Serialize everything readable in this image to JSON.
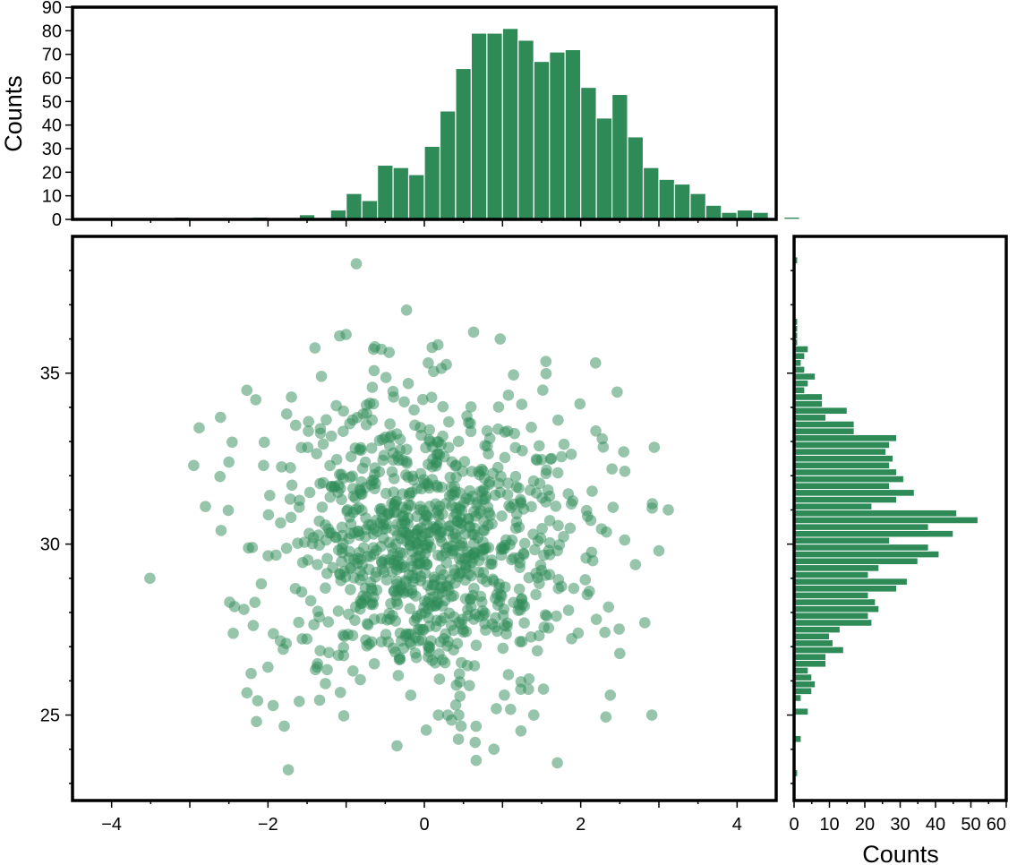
{
  "colors": {
    "accent": "#2e8b57",
    "frame": "#000000",
    "background": "#ffffff"
  },
  "chart_data": [
    {
      "id": "top-histogram",
      "type": "bar",
      "title": "",
      "xlabel": "",
      "ylabel": "Counts",
      "xlim": [
        -4.5,
        4.5
      ],
      "ylim": [
        0,
        90
      ],
      "yticks": [
        0,
        10,
        20,
        30,
        40,
        50,
        60,
        70,
        80,
        90
      ],
      "bin_width": 0.2,
      "bin_start": -4.0,
      "values": [
        0,
        0,
        0,
        0,
        1,
        0,
        0,
        0,
        0,
        1,
        0,
        0,
        2,
        0,
        4,
        11,
        8,
        23,
        22,
        19,
        31,
        46,
        64,
        79,
        79,
        81,
        76,
        67,
        71,
        72,
        56,
        43,
        53,
        35,
        22,
        17,
        15,
        11,
        6,
        3,
        4,
        3,
        0,
        1,
        0,
        0
      ],
      "grid": false
    },
    {
      "id": "scatter",
      "type": "scatter",
      "title": "",
      "xlabel": "",
      "ylabel": "",
      "xlim": [
        -4.5,
        4.5
      ],
      "ylim": [
        22.5,
        39.0
      ],
      "xticks": [
        -4,
        -2,
        0,
        2,
        4
      ],
      "xtick_labels": [
        "−4",
        "−2",
        "0",
        "2",
        "4"
      ],
      "yticks": [
        25,
        30,
        35
      ],
      "ytick_labels": [
        "25",
        "30",
        "35"
      ],
      "n_points": 1000,
      "x_distribution": {
        "mean": 0.0,
        "std": 1.0
      },
      "y_distribution": {
        "mean": 30.0,
        "std": 2.2
      },
      "highlighted_points": [
        [
          -0.87,
          38.2
        ],
        [
          0.63,
          36.2
        ],
        [
          0.97,
          36.0
        ],
        [
          -0.65,
          35.7
        ],
        [
          -0.55,
          35.7
        ],
        [
          2.19,
          35.3
        ],
        [
          0.05,
          35.3
        ],
        [
          -2.27,
          34.5
        ],
        [
          -1.7,
          34.3
        ],
        [
          1.99,
          34.1
        ],
        [
          -2.88,
          33.4
        ],
        [
          -2.95,
          32.3
        ],
        [
          -2.5,
          32.4
        ],
        [
          2.55,
          32.7
        ],
        [
          2.4,
          32.2
        ],
        [
          3.12,
          31.0
        ],
        [
          -2.8,
          31.1
        ],
        [
          -3.51,
          29.0
        ],
        [
          -2.49,
          28.3
        ],
        [
          2.7,
          29.4
        ],
        [
          2.82,
          27.7
        ],
        [
          2.91,
          25.0
        ],
        [
          0.18,
          25.0
        ],
        [
          0.3,
          25.0
        ],
        [
          0.89,
          24.0
        ],
        [
          0.65,
          24.2
        ],
        [
          -0.35,
          24.1
        ],
        [
          -1.74,
          23.4
        ],
        [
          1.4,
          25.0
        ],
        [
          -1.6,
          25.4
        ],
        [
          -2.0,
          26.4
        ],
        [
          -2.6,
          30.4
        ],
        [
          -2.2,
          29.9
        ],
        [
          2.2,
          27.8
        ],
        [
          2.5,
          26.8
        ]
      ]
    },
    {
      "id": "right-histogram",
      "type": "bar",
      "orientation": "horizontal",
      "title": "",
      "xlabel": "Counts",
      "ylabel": "",
      "xlim": [
        0,
        60
      ],
      "xticks": [
        0,
        10,
        20,
        30,
        40,
        50,
        60
      ],
      "ylim": [
        22.5,
        39.0
      ],
      "bin_height": 0.2,
      "bin_start": 23.2,
      "values": [
        1,
        0,
        0,
        0,
        0,
        2,
        0,
        0,
        0,
        4,
        0,
        2,
        5,
        6,
        5,
        4,
        9,
        9,
        14,
        11,
        10,
        13,
        22,
        21,
        24,
        23,
        21,
        29,
        32,
        21,
        24,
        35,
        41,
        38,
        27,
        45,
        38,
        52,
        46,
        22,
        29,
        34,
        27,
        31,
        29,
        27,
        28,
        26,
        27,
        29,
        17,
        17,
        9,
        15,
        8,
        8,
        3,
        4,
        6,
        3,
        2,
        3,
        4,
        1,
        1,
        1,
        1,
        0,
        0,
        0,
        0,
        0,
        0,
        0,
        0,
        1
      ]
    }
  ]
}
